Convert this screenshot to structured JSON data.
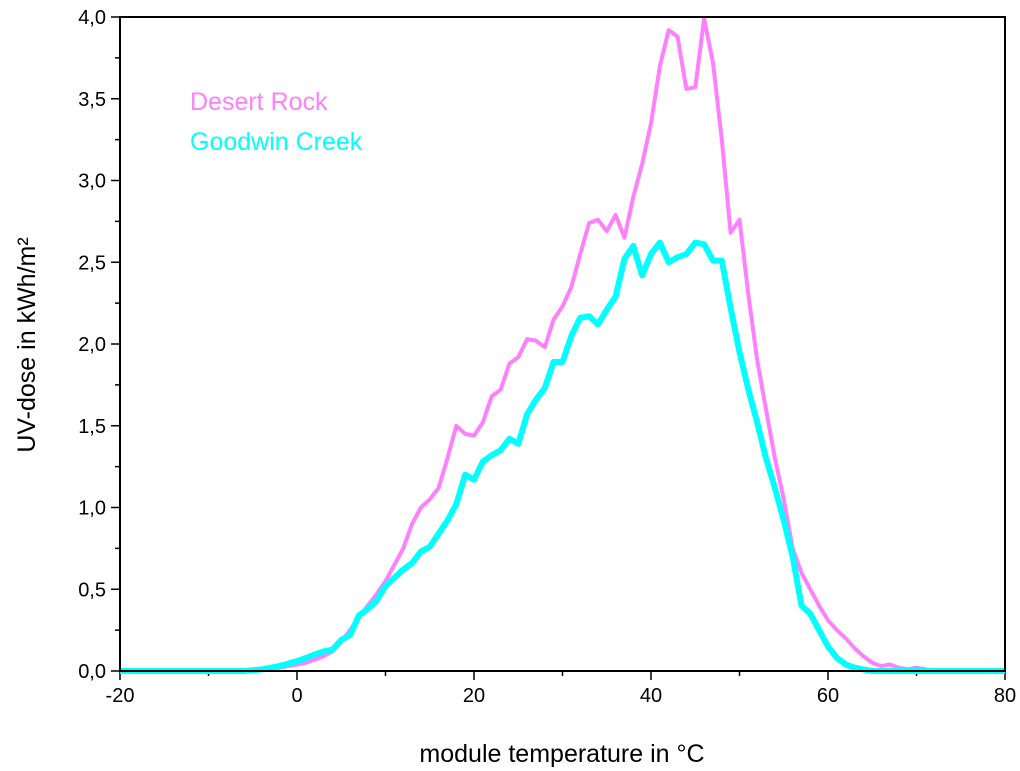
{
  "chart_data": {
    "type": "line",
    "xlabel": "module temperature in °C",
    "ylabel": "UV-dose in kWh/m²",
    "xlim": [
      -20,
      80
    ],
    "ylim": [
      0,
      4
    ],
    "grid": false,
    "legend_position": "top-left",
    "x_ticks": [
      "-20",
      "0",
      "20",
      "40",
      "60",
      "80"
    ],
    "y_ticks": [
      "0,0",
      "0,5",
      "1,0",
      "1,5",
      "2,0",
      "2,5",
      "3,0",
      "3,5",
      "4,0"
    ],
    "series": [
      {
        "name": "Desert Rock",
        "color": "#ff80ff",
        "points": [
          [
            -20,
            0
          ],
          [
            -10,
            0
          ],
          [
            -6,
            0
          ],
          [
            -4,
            0.01
          ],
          [
            -2,
            0.02
          ],
          [
            0,
            0.04
          ],
          [
            1,
            0.05
          ],
          [
            2,
            0.07
          ],
          [
            3,
            0.09
          ],
          [
            4,
            0.12
          ],
          [
            5,
            0.18
          ],
          [
            6,
            0.25
          ],
          [
            7,
            0.33
          ],
          [
            8,
            0.4
          ],
          [
            9,
            0.47
          ],
          [
            10,
            0.55
          ],
          [
            11,
            0.65
          ],
          [
            12,
            0.75
          ],
          [
            13,
            0.9
          ],
          [
            14,
            1.0
          ],
          [
            15,
            1.05
          ],
          [
            16,
            1.12
          ],
          [
            17,
            1.3
          ],
          [
            18,
            1.5
          ],
          [
            19,
            1.45
          ],
          [
            20,
            1.44
          ],
          [
            21,
            1.52
          ],
          [
            22,
            1.68
          ],
          [
            23,
            1.72
          ],
          [
            24,
            1.88
          ],
          [
            25,
            1.92
          ],
          [
            26,
            2.03
          ],
          [
            27,
            2.02
          ],
          [
            28,
            1.98
          ],
          [
            29,
            2.15
          ],
          [
            30,
            2.23
          ],
          [
            31,
            2.35
          ],
          [
            32,
            2.55
          ],
          [
            33,
            2.74
          ],
          [
            34,
            2.76
          ],
          [
            35,
            2.69
          ],
          [
            36,
            2.79
          ],
          [
            37,
            2.65
          ],
          [
            38,
            2.9
          ],
          [
            39,
            3.1
          ],
          [
            40,
            3.35
          ],
          [
            41,
            3.7
          ],
          [
            42,
            3.92
          ],
          [
            43,
            3.88
          ],
          [
            44,
            3.56
          ],
          [
            45,
            3.57
          ],
          [
            46,
            3.99
          ],
          [
            47,
            3.72
          ],
          [
            48,
            3.25
          ],
          [
            49,
            2.68
          ],
          [
            50,
            2.76
          ],
          [
            51,
            2.3
          ],
          [
            52,
            1.9
          ],
          [
            53,
            1.6
          ],
          [
            54,
            1.3
          ],
          [
            55,
            1.05
          ],
          [
            56,
            0.75
          ],
          [
            57,
            0.6
          ],
          [
            58,
            0.5
          ],
          [
            59,
            0.4
          ],
          [
            60,
            0.31
          ],
          [
            61,
            0.25
          ],
          [
            62,
            0.2
          ],
          [
            63,
            0.14
          ],
          [
            64,
            0.09
          ],
          [
            65,
            0.05
          ],
          [
            66,
            0.03
          ],
          [
            67,
            0.04
          ],
          [
            68,
            0.02
          ],
          [
            69,
            0.01
          ],
          [
            70,
            0.02
          ],
          [
            72,
            0
          ],
          [
            80,
            0
          ]
        ]
      },
      {
        "name": "Goodwin Creek",
        "color": "#00ffff",
        "points": [
          [
            -20,
            0
          ],
          [
            -10,
            0
          ],
          [
            -6,
            0
          ],
          [
            -4,
            0.01
          ],
          [
            -2,
            0.03
          ],
          [
            0,
            0.06
          ],
          [
            1,
            0.08
          ],
          [
            2,
            0.1
          ],
          [
            3,
            0.12
          ],
          [
            4,
            0.13
          ],
          [
            5,
            0.19
          ],
          [
            6,
            0.22
          ],
          [
            7,
            0.34
          ],
          [
            8,
            0.38
          ],
          [
            9,
            0.43
          ],
          [
            10,
            0.52
          ],
          [
            11,
            0.57
          ],
          [
            12,
            0.62
          ],
          [
            13,
            0.66
          ],
          [
            14,
            0.73
          ],
          [
            15,
            0.76
          ],
          [
            16,
            0.84
          ],
          [
            17,
            0.92
          ],
          [
            18,
            1.02
          ],
          [
            19,
            1.2
          ],
          [
            20,
            1.17
          ],
          [
            21,
            1.28
          ],
          [
            22,
            1.32
          ],
          [
            23,
            1.35
          ],
          [
            24,
            1.42
          ],
          [
            25,
            1.39
          ],
          [
            26,
            1.57
          ],
          [
            27,
            1.66
          ],
          [
            28,
            1.73
          ],
          [
            29,
            1.89
          ],
          [
            30,
            1.89
          ],
          [
            31,
            2.05
          ],
          [
            32,
            2.16
          ],
          [
            33,
            2.17
          ],
          [
            34,
            2.12
          ],
          [
            35,
            2.21
          ],
          [
            36,
            2.29
          ],
          [
            37,
            2.52
          ],
          [
            38,
            2.6
          ],
          [
            39,
            2.42
          ],
          [
            40,
            2.55
          ],
          [
            41,
            2.62
          ],
          [
            42,
            2.5
          ],
          [
            43,
            2.53
          ],
          [
            44,
            2.55
          ],
          [
            45,
            2.62
          ],
          [
            46,
            2.61
          ],
          [
            47,
            2.51
          ],
          [
            48,
            2.51
          ],
          [
            49,
            2.22
          ],
          [
            50,
            1.95
          ],
          [
            51,
            1.72
          ],
          [
            52,
            1.52
          ],
          [
            53,
            1.3
          ],
          [
            54,
            1.12
          ],
          [
            55,
            0.92
          ],
          [
            56,
            0.7
          ],
          [
            57,
            0.4
          ],
          [
            58,
            0.35
          ],
          [
            59,
            0.25
          ],
          [
            60,
            0.15
          ],
          [
            61,
            0.08
          ],
          [
            62,
            0.04
          ],
          [
            63,
            0.02
          ],
          [
            64,
            0.01
          ],
          [
            65,
            0
          ],
          [
            80,
            0
          ]
        ]
      }
    ]
  }
}
